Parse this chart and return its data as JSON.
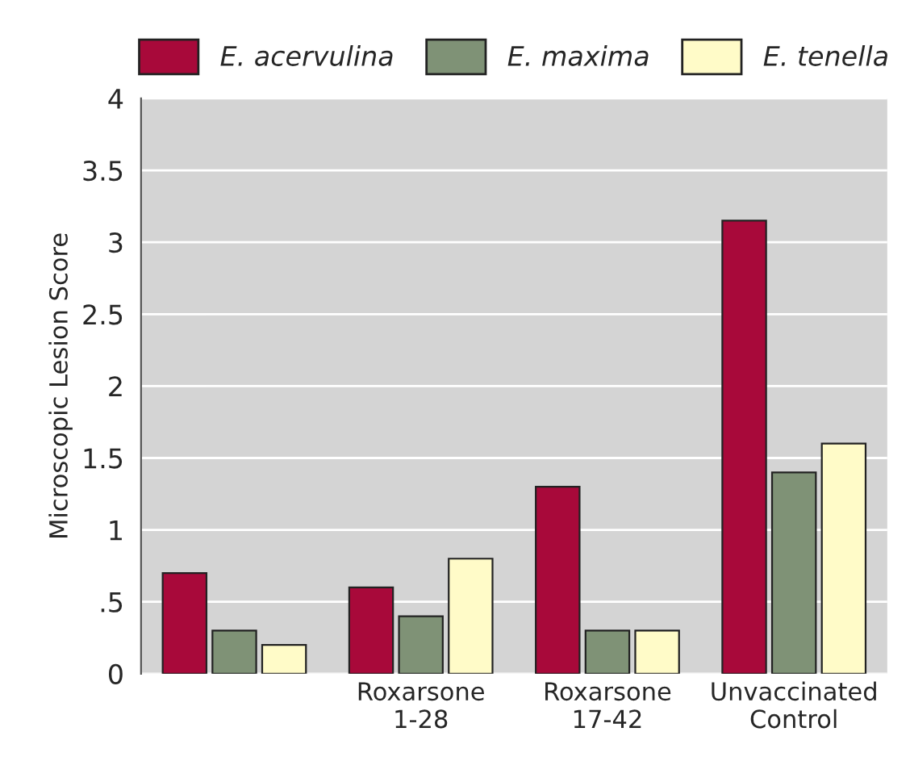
{
  "chart_data": {
    "type": "bar",
    "ylabel": "Microscopic Lesion Score",
    "categories": [
      null,
      "Roxarsone\n1-28",
      "Roxarsone\n17-42",
      "Unvaccinated\nControl"
    ],
    "series": [
      {
        "name": "E. acervulina",
        "color": "#a8093a",
        "values": [
          0.7,
          0.6,
          1.3,
          3.15
        ]
      },
      {
        "name": "E. maxima",
        "color": "#7f9276",
        "values": [
          0.3,
          0.4,
          0.3,
          1.4
        ]
      },
      {
        "name": "E. tenella",
        "color": "#fffbc8",
        "values": [
          0.2,
          0.8,
          0.3,
          1.6
        ]
      }
    ],
    "ylim": [
      0,
      4
    ],
    "yticks": [
      0,
      {
        "value": 0.5,
        "label": ".5"
      },
      1,
      1.5,
      2,
      2.5,
      3,
      3.5,
      4
    ],
    "grid": "y",
    "legend": "top"
  }
}
